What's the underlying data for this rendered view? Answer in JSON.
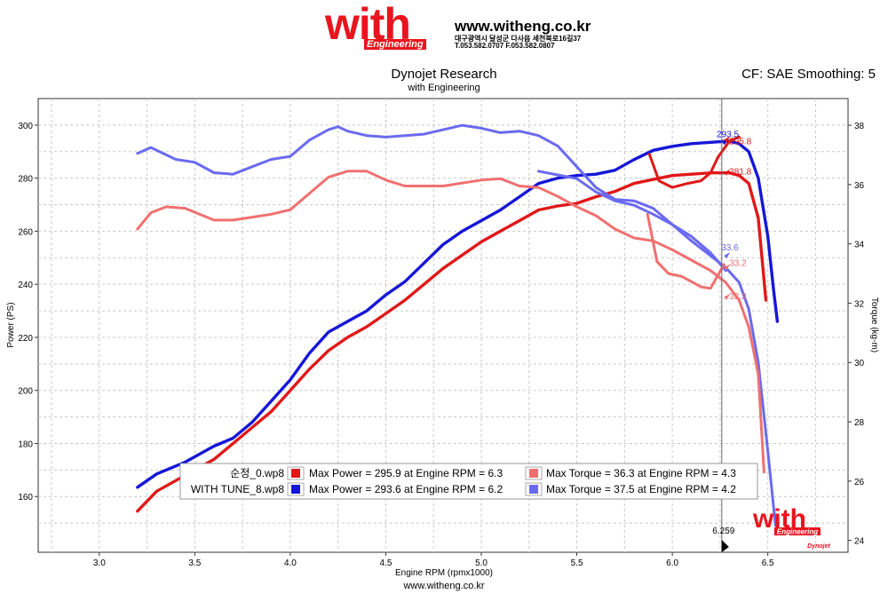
{
  "header": {
    "brand": "with",
    "brand_sub": "Engineering",
    "url": "www.witheng.co.kr",
    "address": "대구광역시 달성군 다사읍 세천북로16길37",
    "tel": "T.053.582.0707 F.053.582.0807"
  },
  "footer_url": "www.witheng.co.kr",
  "watermark": {
    "brand": "with",
    "sub": "Engineering",
    "badge": "Dynojet"
  },
  "colors": {
    "stock_power": "#e01818",
    "stock_torque": "#f07070",
    "tune_power": "#1616d8",
    "tune_torque": "#6a6af0"
  },
  "chart_data": {
    "type": "line",
    "title": "Dynojet Research",
    "subtitle": "with Engineering",
    "cf_text": "CF: SAE Smoothing: 5",
    "xlabel": "Engine RPM (rpmx1000)",
    "ylabel_left": "Power (PS)",
    "ylabel_right": "Torque (kg-m)",
    "xlim": [
      2.68,
      6.92
    ],
    "ylim_left": [
      139,
      310
    ],
    "ylim_right": [
      23.6,
      38.9
    ],
    "xticks": [
      "3.0",
      "3.5",
      "4.0",
      "4.5",
      "5.0",
      "5.5",
      "6.0",
      "6.5"
    ],
    "yticks_left": [
      "160",
      "180",
      "200",
      "220",
      "240",
      "260",
      "280",
      "300"
    ],
    "yticks_right": [
      "24",
      "26",
      "28",
      "30",
      "32",
      "34",
      "36",
      "38"
    ],
    "grid": true,
    "cursor": {
      "x": 6.259,
      "label": "6.259"
    },
    "series": [
      {
        "name": "WITH TUNE_8.wp8 Power",
        "axis": "left",
        "color": "#1616d8",
        "width": 3.4,
        "x": [
          3.2,
          3.3,
          3.45,
          3.6,
          3.7,
          3.8,
          3.9,
          4.0,
          4.1,
          4.2,
          4.3,
          4.4,
          4.5,
          4.6,
          4.7,
          4.8,
          4.9,
          5.0,
          5.1,
          5.2,
          5.3,
          5.4,
          5.5,
          5.6,
          5.7,
          5.8,
          5.9,
          6.0,
          6.1,
          6.2,
          6.3,
          6.35,
          6.4,
          6.45,
          6.5,
          6.53,
          6.55
        ],
        "y": [
          163.5,
          168.5,
          173,
          179,
          182,
          188,
          196,
          204,
          214,
          222,
          226,
          230,
          236,
          241,
          248,
          255,
          260,
          264,
          268,
          273,
          278,
          280,
          281,
          281.5,
          283,
          287,
          290.5,
          292,
          293,
          293.5,
          294,
          293,
          290,
          280,
          258,
          238,
          226
        ]
      },
      {
        "name": "순정_0.wp8 Power",
        "axis": "left",
        "color": "#e01818",
        "width": 3.4,
        "x": [
          3.2,
          3.3,
          3.45,
          3.6,
          3.7,
          3.8,
          3.9,
          4.0,
          4.1,
          4.2,
          4.3,
          4.4,
          4.5,
          4.6,
          4.7,
          4.8,
          4.9,
          5.0,
          5.1,
          5.2,
          5.3,
          5.4,
          5.5,
          5.6,
          5.7,
          5.8,
          5.9,
          6.0,
          6.1,
          6.2,
          6.3,
          6.35,
          6.4,
          6.45,
          6.49
        ],
        "y": [
          154.5,
          162,
          168,
          174,
          180,
          186,
          192,
          200,
          208,
          215,
          220,
          224,
          229,
          234,
          240,
          246,
          251,
          256,
          260,
          264,
          268,
          269.5,
          270.5,
          273,
          275,
          278,
          279.5,
          281,
          281.5,
          282,
          282,
          281,
          278,
          265,
          234
        ]
      },
      {
        "name": "WITH TUNE_8.wp8 Torque",
        "axis": "right",
        "color": "#6a6af0",
        "width": 3,
        "x": [
          3.2,
          3.27,
          3.4,
          3.5,
          3.6,
          3.7,
          3.8,
          3.9,
          4.0,
          4.1,
          4.2,
          4.25,
          4.3,
          4.4,
          4.5,
          4.6,
          4.7,
          4.8,
          4.9,
          5.0,
          5.1,
          5.2,
          5.3,
          5.4,
          5.5,
          5.6,
          5.7,
          5.8,
          5.9,
          6.0,
          6.1,
          6.2,
          6.28,
          6.35,
          6.4,
          6.45,
          6.5,
          6.54
        ],
        "y": [
          37.05,
          37.25,
          36.85,
          36.75,
          36.4,
          36.35,
          36.6,
          36.85,
          36.95,
          37.5,
          37.85,
          37.95,
          37.8,
          37.65,
          37.6,
          37.65,
          37.7,
          37.85,
          38.0,
          37.9,
          37.75,
          37.8,
          37.65,
          37.3,
          36.6,
          35.9,
          35.5,
          35.45,
          35.2,
          34.65,
          34.1,
          33.6,
          33.2,
          32.7,
          31.8,
          30.0,
          27.0,
          24.5
        ]
      },
      {
        "name": "순정_0.wp8 Torque",
        "axis": "right",
        "color": "#f07070",
        "width": 3,
        "x": [
          3.2,
          3.27,
          3.35,
          3.45,
          3.6,
          3.7,
          3.8,
          3.9,
          4.0,
          4.1,
          4.2,
          4.3,
          4.4,
          4.5,
          4.6,
          4.7,
          4.8,
          4.9,
          5.0,
          5.1,
          5.2,
          5.3,
          5.4,
          5.5,
          5.6,
          5.7,
          5.8,
          5.9,
          6.0,
          6.1,
          6.2,
          6.28,
          6.35,
          6.4,
          6.45,
          6.48
        ],
        "y": [
          34.5,
          35.05,
          35.25,
          35.2,
          34.8,
          34.8,
          34.9,
          35.0,
          35.15,
          35.7,
          36.25,
          36.45,
          36.45,
          36.15,
          35.95,
          35.95,
          35.95,
          36.05,
          36.15,
          36.2,
          35.95,
          35.9,
          35.6,
          35.25,
          34.95,
          34.5,
          34.2,
          34.1,
          33.8,
          33.45,
          33.1,
          32.7,
          32.1,
          31.2,
          29.6,
          26.3
        ]
      },
      {
        "name": "WITH TUNE_8.wp8 Torque return",
        "axis": "right",
        "color": "#6a6af0",
        "width": 3,
        "x": [
          5.3,
          5.5,
          5.6,
          5.7,
          5.8,
          5.9,
          6.0,
          6.1,
          6.2,
          6.28
        ],
        "y": [
          36.45,
          36.2,
          35.75,
          35.45,
          35.3,
          35.0,
          34.65,
          34.25,
          33.7,
          33.1
        ]
      },
      {
        "name": "순정_0.wp8 Torque return",
        "axis": "right",
        "color": "#f07070",
        "width": 3,
        "x": [
          5.87,
          5.92,
          5.98,
          6.05,
          6.15,
          6.2,
          6.27
        ],
        "y": [
          35.0,
          33.4,
          33.0,
          32.9,
          32.55,
          32.5,
          33.3
        ]
      },
      {
        "name": "순정_0.wp8 Power return",
        "axis": "left",
        "color": "#e01818",
        "width": 3,
        "x": [
          5.88,
          5.93,
          6.0,
          6.08,
          6.15,
          6.2,
          6.24,
          6.3,
          6.35
        ],
        "y": [
          289,
          279,
          276.5,
          278,
          279,
          282,
          288,
          294,
          295.5
        ]
      }
    ],
    "annotations": [
      {
        "text": "293.5",
        "x": 6.26,
        "y": 293.5,
        "axis": "left",
        "color": "#1616d8",
        "dx": -6,
        "dy": -6
      },
      {
        "text": "295.8",
        "x": 6.27,
        "y": 294.5,
        "axis": "left",
        "color": "#e01818",
        "dx": 6,
        "dy": 5
      },
      {
        "text": "281.8",
        "x": 6.27,
        "y": 282,
        "axis": "left",
        "color": "#e01818",
        "dx": 6,
        "dy": 2
      },
      {
        "text": "33.6",
        "x": 6.27,
        "y": 33.6,
        "axis": "right",
        "color": "#6a6af0",
        "dx": -3,
        "dy": -6
      },
      {
        "text": "33.2",
        "x": 6.27,
        "y": 33.2,
        "axis": "right",
        "color": "#f07070",
        "dx": 6,
        "dy": -2
      },
      {
        "text": "32.2",
        "x": 6.27,
        "y": 32.2,
        "axis": "right",
        "color": "#f07070",
        "dx": 6,
        "dy": 2
      }
    ],
    "legend": [
      {
        "file": "순정_0.wp8",
        "power_text": "Max Power = 295.9 at Engine RPM = 6.3",
        "torque_text": "Max Torque = 36.3 at Engine RPM = 4.3",
        "power_color": "#e01818",
        "torque_color": "#f07070"
      },
      {
        "file": "WITH TUNE_8.wp8",
        "power_text": "Max Power = 293.6 at Engine RPM = 6.2",
        "torque_text": "Max Torque = 37.5 at Engine RPM = 4.2",
        "power_color": "#1616d8",
        "torque_color": "#6a6af0"
      }
    ]
  }
}
